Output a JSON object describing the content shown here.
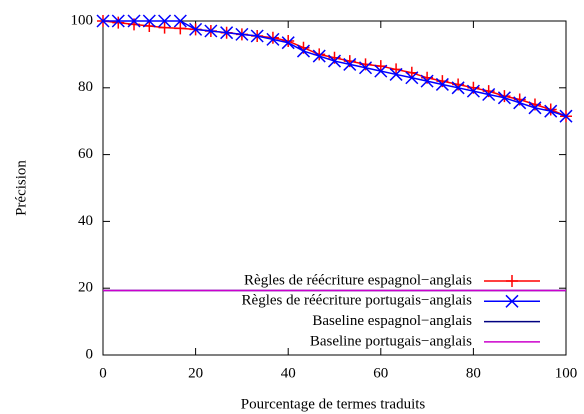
{
  "chart_data": {
    "type": "line",
    "x_label": "Pourcentage de termes traduits",
    "y_label": "Précision",
    "xlim": [
      0,
      100
    ],
    "xticks": [
      0,
      20,
      40,
      60,
      80,
      100
    ],
    "ylim": [
      0,
      100
    ],
    "yticks": [
      0,
      20,
      40,
      60,
      80,
      100
    ],
    "legend": "bottom-right",
    "series": [
      {
        "name": "Règles de réécriture espagnol−anglais",
        "color": "#ff0000",
        "marker": "plus",
        "x": [
          0,
          3.3,
          6.7,
          10,
          13.3,
          16.7,
          20,
          23.3,
          26.7,
          30,
          33.3,
          36.7,
          40,
          43.3,
          46.7,
          50,
          53.3,
          56.7,
          60,
          63.3,
          66.7,
          70,
          73.3,
          76.7,
          80,
          83.3,
          86.7,
          90,
          93.3,
          96.7,
          100
        ],
        "values": [
          100,
          99.5,
          99,
          98.5,
          98,
          97.8,
          97.5,
          97,
          96.5,
          96,
          95.5,
          95,
          94,
          92,
          90,
          89,
          88,
          87,
          86.5,
          85.5,
          84.5,
          83,
          82,
          81,
          80,
          79,
          77.5,
          76.5,
          75,
          73.5,
          71.5
        ]
      },
      {
        "name": "Règles de réécriture portugais−anglais",
        "color": "#0000ff",
        "marker": "cross",
        "x": [
          0,
          3.3,
          6.7,
          10,
          13.3,
          16.7,
          20,
          23.3,
          26.7,
          30,
          33.3,
          36.7,
          40,
          43.3,
          46.7,
          50,
          53.3,
          56.7,
          60,
          63.3,
          66.7,
          70,
          73.3,
          76.7,
          80,
          83.3,
          86.7,
          90,
          93.3,
          96.7,
          100
        ],
        "values": [
          100,
          100,
          100,
          100,
          100,
          100,
          97.5,
          97,
          96.5,
          96,
          95.5,
          94.5,
          93.5,
          91,
          89.5,
          88,
          87,
          86,
          85,
          84,
          83,
          82,
          81,
          80,
          79,
          78,
          77,
          75.5,
          74,
          73,
          71.5
        ]
      },
      {
        "name": "Baseline espagnol−anglais",
        "color": "#000080",
        "marker": "none",
        "x": [
          0,
          100
        ],
        "values": [
          19.3,
          19.3
        ]
      },
      {
        "name": "Baseline portugais−anglais",
        "color": "#cc00cc",
        "marker": "none",
        "x": [
          0,
          100
        ],
        "values": [
          19.3,
          19.3
        ]
      }
    ]
  }
}
